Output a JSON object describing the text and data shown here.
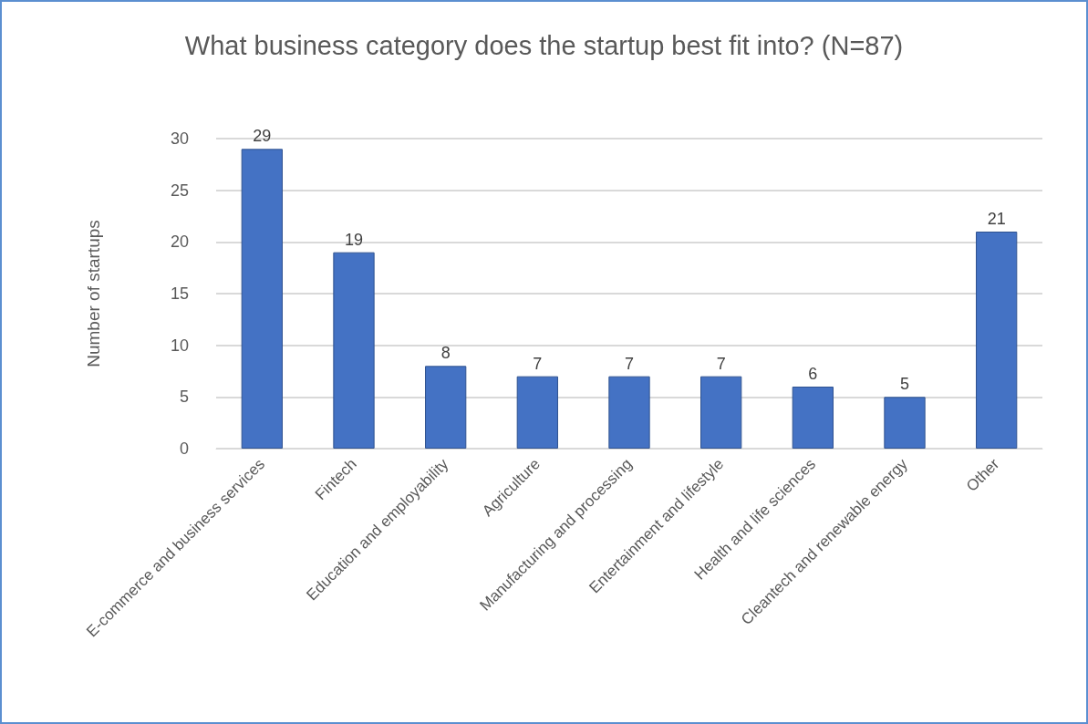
{
  "chart_data": {
    "type": "bar",
    "title": "What business category does the startup best fit into? (N=87)",
    "ylabel": "Number of startups",
    "categories": [
      "E-commerce and business services",
      "Fintech",
      "Education and employability",
      "Agriculture",
      "Manufacturing and processing",
      "Entertainment and lifestyle",
      "Health and life sciences",
      "Cleantech and renewable energy",
      "Other"
    ],
    "values": [
      29,
      19,
      8,
      7,
      7,
      7,
      6,
      5,
      21
    ],
    "color": "#4472c4",
    "ylim": [
      0,
      30
    ],
    "yticks": [
      0,
      5,
      10,
      15,
      20,
      25,
      30
    ],
    "grid": "y",
    "data_labels": true
  }
}
